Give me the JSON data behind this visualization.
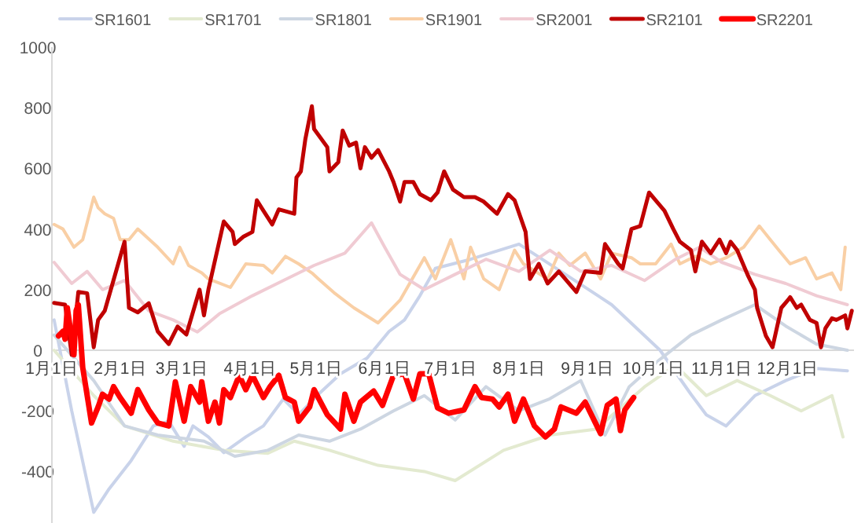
{
  "chart_data": {
    "type": "line",
    "legend": "top",
    "grid": false,
    "line_style": "solid",
    "marker": "none",
    "xlim": [
      "--01-01",
      "--12-31"
    ],
    "xticks": [
      {
        "value": "--01-01",
        "label": "1月1日"
      },
      {
        "value": "--02-01",
        "label": "2月1日"
      },
      {
        "value": "--03-01",
        "label": "3月1日"
      },
      {
        "value": "--04-01",
        "label": "4月1日"
      },
      {
        "value": "--05-01",
        "label": "5月1日"
      },
      {
        "value": "--06-01",
        "label": "6月1日"
      },
      {
        "value": "--07-01",
        "label": "7月1日"
      },
      {
        "value": "--08-01",
        "label": "8月1日"
      },
      {
        "value": "--09-01",
        "label": "9月1日"
      },
      {
        "value": "--10-01",
        "label": "10月1日"
      },
      {
        "value": "--11-01",
        "label": "11月1日"
      },
      {
        "value": "--12-01",
        "label": "12月1日"
      }
    ],
    "ylim": [
      -570,
      1000
    ],
    "yticks": [
      -400,
      -200,
      0,
      200,
      400,
      600,
      800,
      1000
    ],
    "series": [
      {
        "name": "SR1601",
        "color": "#c9d3ea",
        "x": [
          "--01-02",
          "--01-10",
          "--01-20",
          "--01-27",
          "--02-06",
          "--02-16",
          "--02-23",
          "--03-02",
          "--03-06",
          "--03-13",
          "--03-20",
          "--03-30",
          "--04-07",
          "--04-16",
          "--04-23",
          "--05-02",
          "--05-12",
          "--05-24",
          "--06-03",
          "--06-10",
          "--06-17",
          "--06-24",
          "--07-10",
          "--08-01",
          "--08-22",
          "--09-12",
          "--10-04",
          "--10-18",
          "--10-25",
          "--11-03",
          "--11-16",
          "--11-30",
          "--12-14",
          "--12-28"
        ],
        "values": [
          100,
          -200,
          -535,
          -457,
          -364,
          -250,
          -234,
          -317,
          -250,
          -286,
          -338,
          -286,
          -250,
          -161,
          -213,
          -145,
          -78,
          -26,
          62,
          100,
          180,
          270,
          300,
          350,
          250,
          150,
          0,
          -145,
          -213,
          -250,
          -150,
          -100,
          -60,
          -68
        ]
      },
      {
        "name": "SR1701",
        "color": "#e3ead0",
        "x": [
          "--01-02",
          "--01-20",
          "--02-03",
          "--02-25",
          "--03-20",
          "--04-09",
          "--04-21",
          "--05-07",
          "--05-29",
          "--06-19",
          "--07-03",
          "--07-25",
          "--08-15",
          "--09-05",
          "--09-27",
          "--10-11",
          "--10-25",
          "--11-08",
          "--11-23",
          "--12-07",
          "--12-21",
          "--12-26"
        ],
        "values": [
          0,
          -150,
          -250,
          -300,
          -330,
          -340,
          -300,
          -330,
          -380,
          -400,
          -430,
          -330,
          -280,
          -260,
          -120,
          -50,
          -150,
          -100,
          -150,
          -200,
          -150,
          -286
        ]
      },
      {
        "name": "SR1801",
        "color": "#cdd6e2",
        "x": [
          "--01-02",
          "--01-20",
          "--02-03",
          "--02-18",
          "--03-11",
          "--03-25",
          "--04-09",
          "--04-23",
          "--05-07",
          "--05-21",
          "--06-05",
          "--06-19",
          "--07-03",
          "--07-17",
          "--08-01",
          "--08-15",
          "--08-29",
          "--09-09",
          "--09-20",
          "--10-04",
          "--10-18",
          "--11-01",
          "--11-16",
          "--11-30",
          "--12-14",
          "--12-28"
        ],
        "values": [
          50,
          -100,
          -250,
          -280,
          -300,
          -350,
          -330,
          -280,
          -300,
          -260,
          -200,
          -150,
          -230,
          -120,
          -200,
          -160,
          -100,
          -280,
          -120,
          -30,
          50,
          100,
          150,
          80,
          20,
          0
        ]
      },
      {
        "name": "SR1901",
        "color": "#f9cfa5",
        "x": [
          "--01-02",
          "--01-06",
          "--01-11",
          "--01-15",
          "--01-20",
          "--01-22",
          "--01-25",
          "--01-29",
          "--02-01",
          "--02-05",
          "--02-09",
          "--02-18",
          "--02-25",
          "--02-28",
          "--03-04",
          "--03-10",
          "--03-13",
          "--03-23",
          "--03-30",
          "--04-07",
          "--04-11",
          "--04-17",
          "--04-23",
          "--04-29",
          "--05-02",
          "--05-09",
          "--05-18",
          "--05-29",
          "--06-08",
          "--06-19",
          "--06-24",
          "--07-01",
          "--07-07",
          "--07-10",
          "--07-16",
          "--07-23",
          "--07-30",
          "--08-03",
          "--08-14",
          "--08-19",
          "--08-24",
          "--08-31",
          "--09-07",
          "--09-12",
          "--09-21",
          "--09-25",
          "--10-02",
          "--10-09",
          "--10-13",
          "--10-20",
          "--10-27",
          "--11-03",
          "--11-11",
          "--11-18",
          "--11-23",
          "--11-28",
          "--12-02",
          "--12-09",
          "--12-14",
          "--12-21",
          "--12-25",
          "--12-27"
        ],
        "values": [
          415,
          400,
          340,
          365,
          505,
          470,
          450,
          435,
          365,
          365,
          400,
          340,
          285,
          340,
          280,
          255,
          235,
          207,
          285,
          280,
          255,
          310,
          285,
          255,
          235,
          190,
          140,
          90,
          165,
          305,
          235,
          365,
          235,
          340,
          235,
          200,
          330,
          285,
          235,
          320,
          280,
          320,
          235,
          320,
          305,
          285,
          285,
          350,
          285,
          310,
          285,
          305,
          340,
          410,
          365,
          320,
          285,
          305,
          235,
          255,
          200,
          340
        ]
      },
      {
        "name": "SR2001",
        "color": "#f0cbd3",
        "x": [
          "--01-02",
          "--01-10",
          "--01-17",
          "--01-24",
          "--02-03",
          "--02-14",
          "--02-25",
          "--03-08",
          "--03-18",
          "--04-02",
          "--04-16",
          "--04-30",
          "--05-14",
          "--05-26",
          "--06-01",
          "--06-08",
          "--06-19",
          "--07-03",
          "--07-17",
          "--08-01",
          "--08-15",
          "--08-29",
          "--09-12",
          "--09-27",
          "--10-11",
          "--10-22",
          "--11-01",
          "--11-16",
          "--11-30",
          "--12-14",
          "--12-28"
        ],
        "values": [
          290,
          220,
          260,
          200,
          230,
          130,
          100,
          60,
          120,
          180,
          230,
          280,
          320,
          420,
          340,
          250,
          200,
          250,
          300,
          260,
          330,
          260,
          280,
          230,
          300,
          340,
          290,
          250,
          220,
          180,
          150
        ]
      },
      {
        "name": "SR2101",
        "color": "#c00000",
        "x": [
          "--01-02",
          "--01-07",
          "--01-10",
          "--01-13",
          "--01-17",
          "--01-20",
          "--01-22",
          "--01-25",
          "--02-03",
          "--02-05",
          "--02-09",
          "--02-14",
          "--02-18",
          "--02-23",
          "--02-27",
          "--03-03",
          "--03-09",
          "--03-11",
          "--03-13",
          "--03-20",
          "--03-24",
          "--03-25",
          "--03-29",
          "--04-02",
          "--04-04",
          "--04-07",
          "--04-11",
          "--04-14",
          "--04-21",
          "--04-22",
          "--04-24",
          "--04-26",
          "--04-29",
          "--04-30",
          "--05-06",
          "--05-07",
          "--05-11",
          "--05-13",
          "--05-16",
          "--05-19",
          "--05-21",
          "--05-23",
          "--05-26",
          "--05-29",
          "--06-03",
          "--06-05",
          "--06-08",
          "--06-10",
          "--06-14",
          "--06-17",
          "--06-22",
          "--06-25",
          "--06-28",
          "--07-02",
          "--07-07",
          "--07-12",
          "--07-16",
          "--07-22",
          "--07-27",
          "--07-30",
          "--08-04",
          "--08-06",
          "--08-10",
          "--08-14",
          "--08-19",
          "--08-27",
          "--08-31",
          "--09-07",
          "--09-09",
          "--09-15",
          "--09-17",
          "--09-21",
          "--09-25",
          "--09-29",
          "--10-06",
          "--10-10",
          "--10-13",
          "--10-18",
          "--10-20",
          "--10-23",
          "--10-27",
          "--10-31",
          "--11-03",
          "--11-05",
          "--11-08",
          "--11-13",
          "--11-16",
          "--11-17",
          "--11-21",
          "--11-24",
          "--11-28",
          "--12-01",
          "--12-02",
          "--12-05",
          "--12-07",
          "--12-11",
          "--12-14",
          "--12-16",
          "--12-18",
          "--12-21",
          "--12-23",
          "--12-27",
          "--12-28",
          "--12-30"
        ],
        "values": [
          156,
          150,
          -15,
          192,
          188,
          10,
          100,
          130,
          358,
          140,
          125,
          155,
          62,
          20,
          78,
          52,
          200,
          115,
          200,
          425,
          390,
          350,
          375,
          390,
          495,
          460,
          415,
          465,
          450,
          570,
          590,
          695,
          805,
          730,
          670,
          590,
          620,
          725,
          675,
          685,
          600,
          670,
          635,
          660,
          590,
          555,
          490,
          555,
          555,
          515,
          495,
          520,
          590,
          530,
          505,
          505,
          490,
          450,
          515,
          495,
          390,
          235,
          285,
          220,
          260,
          192,
          260,
          255,
          350,
          285,
          270,
          400,
          410,
          520,
          460,
          400,
          358,
          330,
          260,
          358,
          320,
          365,
          320,
          358,
          330,
          245,
          200,
          140,
          47,
          10,
          140,
          165,
          175,
          140,
          150,
          100,
          90,
          10,
          72,
          105,
          100,
          115,
          72,
          130
        ]
      },
      {
        "name": "SR2201",
        "color": "#ff0000",
        "x": [
          "--01-04",
          "--01-06",
          "--01-07",
          "--01-08",
          "--01-11",
          "--01-12",
          "--01-13",
          "--01-15",
          "--01-19",
          "--01-22",
          "--01-24",
          "--01-27",
          "--01-29",
          "--02-01",
          "--02-06",
          "--02-09",
          "--02-14",
          "--02-18",
          "--02-23",
          "--02-26",
          "--03-02",
          "--03-05",
          "--03-09",
          "--03-10",
          "--03-13",
          "--03-16",
          "--03-18",
          "--03-20",
          "--03-23",
          "--03-27",
          "--03-30",
          "--04-02",
          "--04-07",
          "--04-10",
          "--04-14",
          "--04-17",
          "--04-21",
          "--04-23",
          "--04-28",
          "--04-30",
          "--05-06",
          "--05-12",
          "--05-14",
          "--05-18",
          "--05-21",
          "--05-27",
          "--05-31",
          "--06-05",
          "--06-10",
          "--06-14",
          "--06-17",
          "--06-21",
          "--06-25",
          "--06-30",
          "--07-07",
          "--07-12",
          "--07-15",
          "--07-20",
          "--07-23",
          "--07-27",
          "--07-30",
          "--08-03",
          "--08-08",
          "--08-13",
          "--08-17",
          "--08-20",
          "--08-27",
          "--08-31",
          "--09-07",
          "--09-10",
          "--09-14",
          "--09-16",
          "--09-18",
          "--09-22"
        ],
        "values": [
          47,
          62,
          36,
          140,
          -15,
          130,
          150,
          -57,
          -240,
          -187,
          -145,
          -161,
          -120,
          -156,
          -208,
          -130,
          -197,
          -240,
          -250,
          -104,
          -234,
          -120,
          -171,
          -104,
          -234,
          -171,
          -240,
          -130,
          -156,
          -83,
          -130,
          -83,
          -156,
          -120,
          -83,
          -156,
          -171,
          -234,
          -187,
          -130,
          -213,
          -260,
          -145,
          -234,
          -171,
          -135,
          -182,
          -83,
          -78,
          -161,
          -78,
          -78,
          -190,
          -208,
          -197,
          -120,
          -156,
          -161,
          -187,
          -145,
          -234,
          -161,
          -250,
          -286,
          -260,
          -187,
          -208,
          -171,
          -275,
          -182,
          -161,
          -265,
          -197,
          -156
        ]
      }
    ]
  }
}
